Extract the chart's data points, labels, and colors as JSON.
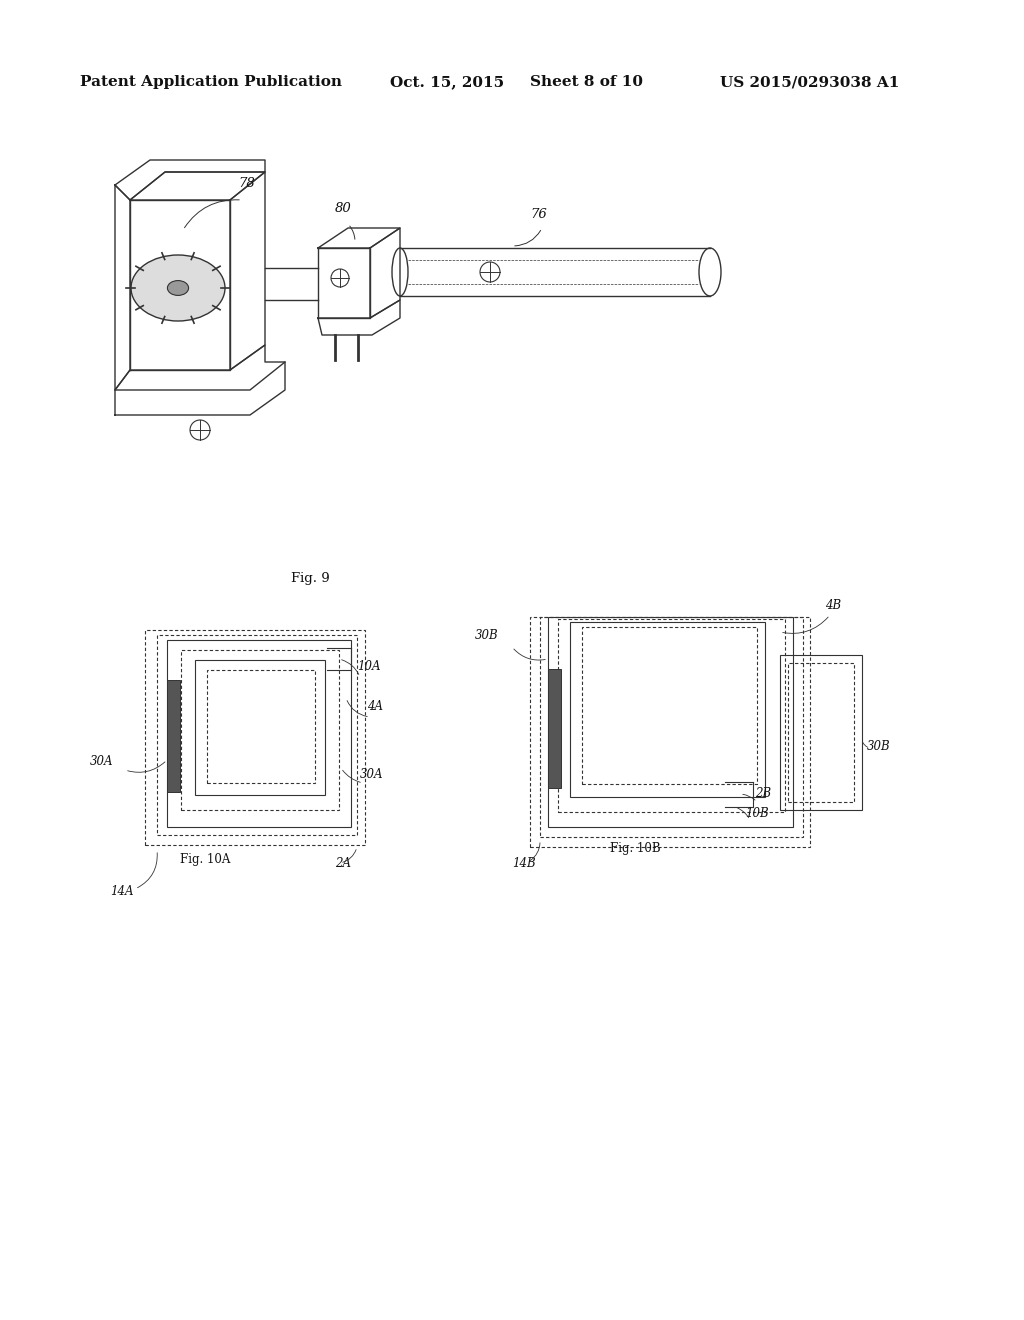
{
  "background_color": "#ffffff",
  "header_text": "Patent Application Publication",
  "header_date": "Oct. 15, 2015",
  "header_sheet": "Sheet 8 of 10",
  "header_patent": "US 2015/0293038 A1",
  "fig9_label": "Fig. 9",
  "fig10a_label": "Fig. 10A",
  "fig10b_label": "Fig. 10B",
  "label_78": "78",
  "label_80": "80",
  "label_76": "76",
  "label_10A": "10A",
  "label_4A": "4A",
  "label_30A_l": "30A",
  "label_30A_r": "30A",
  "label_2A": "2A",
  "label_14A": "14A",
  "label_4B": "4B",
  "label_30B_t": "30B",
  "label_30B_r": "30B",
  "label_2B": "2B",
  "label_10B": "10B",
  "label_14B": "14B"
}
